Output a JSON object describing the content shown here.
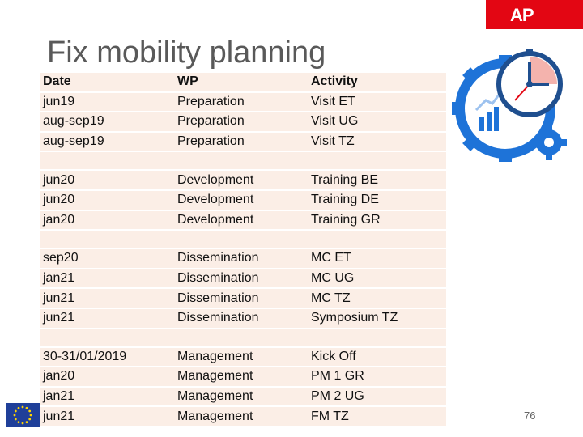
{
  "header": {
    "logo_text": "AP",
    "brand_color": "#e30613"
  },
  "title": "Fix mobility planning",
  "table": {
    "headers": [
      "Date",
      "WP",
      "Activity"
    ],
    "groups": [
      [
        [
          "jun19",
          "Preparation",
          "Visit ET"
        ],
        [
          "aug-sep19",
          "Preparation",
          "Visit UG"
        ],
        [
          "aug-sep19",
          "Preparation",
          "Visit TZ"
        ]
      ],
      [
        [
          "jun20",
          "Development",
          "Training BE"
        ],
        [
          "jun20",
          "Development",
          "Training DE"
        ],
        [
          "jan20",
          "Development",
          "Training GR"
        ]
      ],
      [
        [
          "sep20",
          "Dissemination",
          "MC ET"
        ],
        [
          "jan21",
          "Dissemination",
          "MC UG"
        ],
        [
          "jun21",
          "Dissemination",
          "MC TZ"
        ],
        [
          "jun21",
          "Dissemination",
          "Symposium TZ"
        ]
      ],
      [
        [
          "30-31/01/2019",
          "Management",
          "Kick Off"
        ],
        [
          "jan20",
          "Management",
          "PM 1 GR"
        ],
        [
          "jan21",
          "Management",
          "PM 2 UG"
        ],
        [
          "jun21",
          "Management",
          "FM TZ"
        ]
      ]
    ],
    "cell_color": "#fbeee6"
  },
  "illustration": {
    "icons": [
      "gear-icon",
      "clock-icon",
      "bar-chart-icon",
      "small-gear-icon"
    ],
    "accent": "#1e73d8"
  },
  "footer": {
    "page_number": "76",
    "eu_flag_color": "#1f3f99"
  }
}
